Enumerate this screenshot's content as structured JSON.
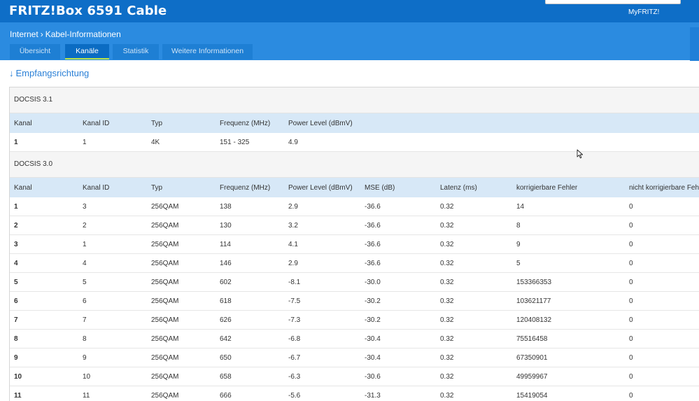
{
  "app": {
    "title": "FRITZ!Box 6591 Cable",
    "myfritz_label": "MyFRITZ!"
  },
  "breadcrumb": {
    "parent": "Internet",
    "separator": "›",
    "current": "Kabel-Informationen"
  },
  "tabs": [
    {
      "label": "Übersicht",
      "active": false
    },
    {
      "label": "Kanäle",
      "active": true
    },
    {
      "label": "Statistik",
      "active": false
    },
    {
      "label": "Weitere Informationen",
      "active": false
    }
  ],
  "section": {
    "arrow": "↓",
    "title": "Empfangsrichtung"
  },
  "docsis31": {
    "title": "DOCSIS 3.1",
    "columns": [
      "Kanal",
      "Kanal ID",
      "Typ",
      "Frequenz (MHz)",
      "Power Level (dBmV)"
    ],
    "rows": [
      [
        "1",
        "1",
        "4K",
        "151 - 325",
        "4.9"
      ]
    ]
  },
  "docsis30": {
    "title": "DOCSIS 3.0",
    "columns": [
      "Kanal",
      "Kanal ID",
      "Typ",
      "Frequenz (MHz)",
      "Power Level (dBmV)",
      "MSE (dB)",
      "Latenz (ms)",
      "korrigierbare Fehler",
      "nicht korrigierbare Fehler"
    ],
    "rows": [
      [
        "1",
        "3",
        "256QAM",
        "138",
        "2.9",
        "-36.6",
        "0.32",
        "14",
        "0"
      ],
      [
        "2",
        "2",
        "256QAM",
        "130",
        "3.2",
        "-36.6",
        "0.32",
        "8",
        "0"
      ],
      [
        "3",
        "1",
        "256QAM",
        "114",
        "4.1",
        "-36.6",
        "0.32",
        "9",
        "0"
      ],
      [
        "4",
        "4",
        "256QAM",
        "146",
        "2.9",
        "-36.6",
        "0.32",
        "5",
        "0"
      ],
      [
        "5",
        "5",
        "256QAM",
        "602",
        "-8.1",
        "-30.0",
        "0.32",
        "153366353",
        "0"
      ],
      [
        "6",
        "6",
        "256QAM",
        "618",
        "-7.5",
        "-30.2",
        "0.32",
        "103621177",
        "0"
      ],
      [
        "7",
        "7",
        "256QAM",
        "626",
        "-7.3",
        "-30.2",
        "0.32",
        "120408132",
        "0"
      ],
      [
        "8",
        "8",
        "256QAM",
        "642",
        "-6.8",
        "-30.4",
        "0.32",
        "75516458",
        "0"
      ],
      [
        "9",
        "9",
        "256QAM",
        "650",
        "-6.7",
        "-30.4",
        "0.32",
        "67350901",
        "0"
      ],
      [
        "10",
        "10",
        "256QAM",
        "658",
        "-6.3",
        "-30.6",
        "0.32",
        "49959967",
        "0"
      ],
      [
        "11",
        "11",
        "256QAM",
        "666",
        "-5.6",
        "-31.3",
        "0.32",
        "15419054",
        "0"
      ]
    ]
  },
  "colors": {
    "topbar": "#0e6ec7",
    "subbar": "#2b8be0",
    "tab_active_underline": "#b9e24a",
    "table_header": "#d7e8f7"
  },
  "icons": {
    "cursor": "mouse-pointer-icon"
  }
}
